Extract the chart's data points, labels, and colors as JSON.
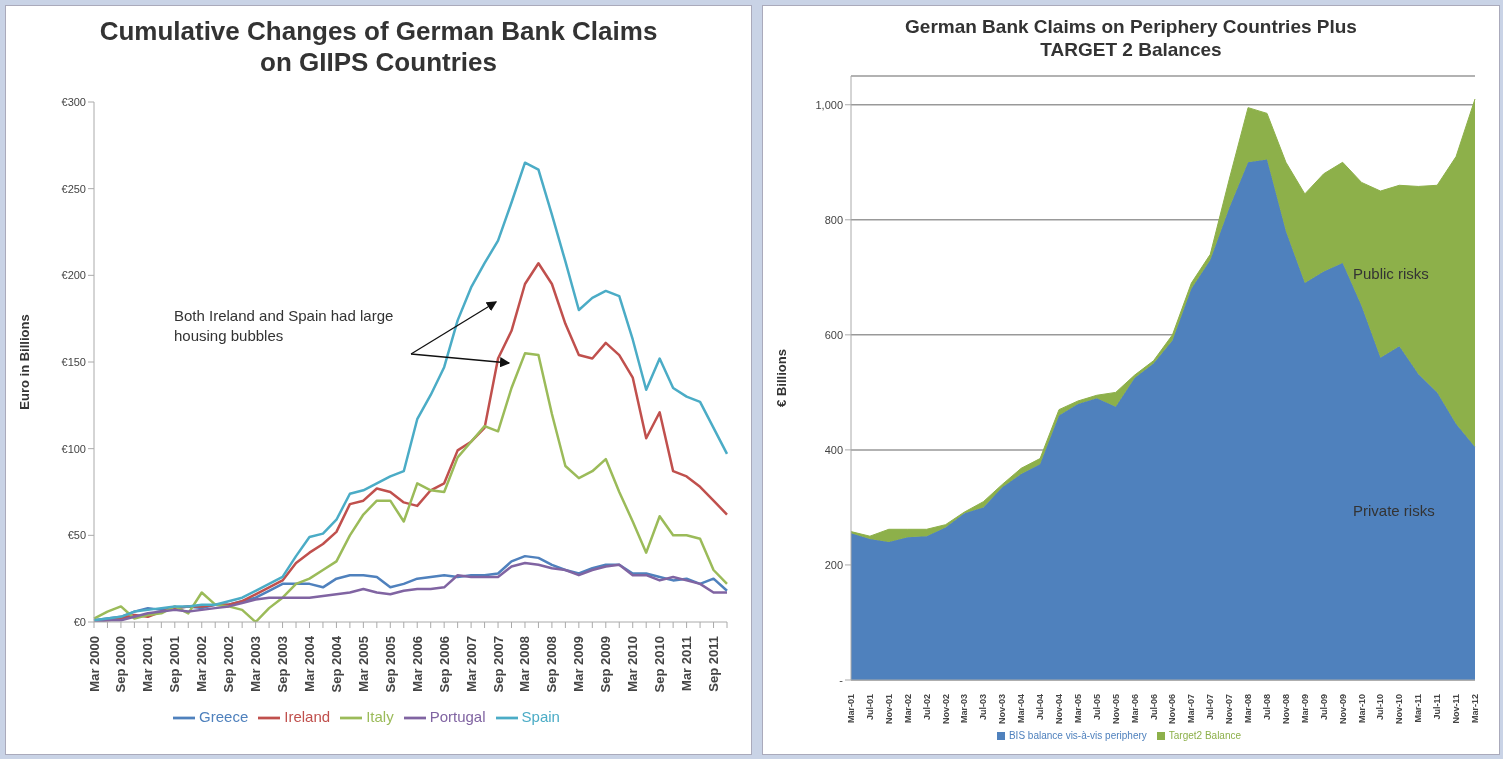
{
  "chart_data": [
    {
      "type": "line",
      "title": "Cumulative Changes of German Bank Claims on GIIPS Countries",
      "ylabel": "Euro in Billions",
      "categories": [
        "Mar 2000",
        null,
        "Sep 2000",
        null,
        "Mar 2001",
        null,
        "Sep 2001",
        null,
        "Mar 2002",
        null,
        "Sep 2002",
        null,
        "Mar 2003",
        null,
        "Sep 2003",
        null,
        "Mar 2004",
        null,
        "Sep 2004",
        null,
        "Mar 2005",
        null,
        "Sep 2005",
        null,
        "Mar 2006",
        null,
        "Sep 2006",
        null,
        "Mar 2007",
        null,
        "Sep 2007",
        null,
        "Mar 2008",
        null,
        "Sep 2008",
        null,
        "Mar 2009",
        null,
        "Sep 2009",
        null,
        "Mar 2010",
        null,
        "Sep 2010",
        null,
        "Mar 2011",
        null,
        "Sep 2011",
        null
      ],
      "ylim": [
        0,
        300
      ],
      "yticks": [
        {
          "value": 0,
          "label": "€0"
        },
        {
          "value": 50,
          "label": "€50"
        },
        {
          "value": 100,
          "label": "€100"
        },
        {
          "value": 150,
          "label": "€150"
        },
        {
          "value": 200,
          "label": "€200"
        },
        {
          "value": 250,
          "label": "€250"
        },
        {
          "value": 300,
          "label": "€300"
        }
      ],
      "legend": "bottom",
      "annotations": [
        "Both Ireland and Spain had large housing bubbles"
      ],
      "series": [
        {
          "name": "Greece",
          "color": "#4f81bd",
          "values": [
            1,
            2,
            3,
            6,
            8,
            7,
            8,
            9,
            8,
            10,
            10,
            12,
            14,
            18,
            22,
            22,
            22,
            20,
            25,
            27,
            27,
            26,
            20,
            22,
            25,
            26,
            27,
            26,
            27,
            27,
            28,
            35,
            38,
            37,
            33,
            30,
            28,
            31,
            33,
            33,
            28,
            28,
            26,
            24,
            25,
            22,
            25,
            18
          ]
        },
        {
          "name": "Ireland",
          "color": "#c0504d",
          "values": [
            1,
            1,
            2,
            4,
            3,
            6,
            8,
            9,
            9,
            10,
            10,
            12,
            16,
            20,
            24,
            34,
            40,
            45,
            52,
            68,
            70,
            77,
            75,
            69,
            67,
            76,
            80,
            99,
            104,
            112,
            152,
            168,
            195,
            207,
            195,
            172,
            154,
            152,
            161,
            154,
            141,
            106,
            121,
            87,
            84,
            78,
            70,
            62
          ]
        },
        {
          "name": "Italy",
          "color": "#9bbb59",
          "values": [
            2,
            6,
            9,
            2,
            4,
            5,
            9,
            5,
            17,
            10,
            9,
            7,
            0,
            8,
            14,
            22,
            25,
            30,
            35,
            50,
            62,
            70,
            70,
            58,
            80,
            76,
            75,
            95,
            104,
            113,
            110,
            135,
            155,
            154,
            120,
            90,
            83,
            87,
            94,
            75,
            58,
            40,
            61,
            50,
            50,
            48,
            30,
            22
          ]
        },
        {
          "name": "Portugal",
          "color": "#8064a2",
          "values": [
            0,
            1,
            1,
            3,
            5,
            6,
            7,
            6,
            7,
            8,
            9,
            11,
            13,
            14,
            14,
            14,
            14,
            15,
            16,
            17,
            19,
            17,
            16,
            18,
            19,
            19,
            20,
            27,
            26,
            26,
            26,
            32,
            34,
            33,
            31,
            30,
            27,
            30,
            32,
            33,
            27,
            27,
            24,
            26,
            24,
            22,
            17,
            17
          ]
        },
        {
          "name": "Spain",
          "color": "#4bacc6",
          "values": [
            1,
            2,
            3,
            6,
            7,
            8,
            9,
            9,
            10,
            10,
            12,
            14,
            18,
            22,
            26,
            38,
            49,
            51,
            59,
            74,
            76,
            80,
            84,
            87,
            117,
            131,
            147,
            174,
            193,
            207,
            220,
            242,
            265,
            261,
            235,
            208,
            180,
            187,
            191,
            188,
            163,
            134,
            152,
            135,
            130,
            127,
            112,
            97
          ]
        }
      ]
    },
    {
      "type": "area",
      "stacked": true,
      "title": "German Bank Claims on Periphery Countries Plus TARGET 2 Balances",
      "ylabel": "€ Billions",
      "categories": [
        "Mar-01",
        "Jul-01",
        "Nov-01",
        "Mar-02",
        "Jul-02",
        "Nov-02",
        "Mar-03",
        "Jul-03",
        "Nov-03",
        "Mar-04",
        "Jul-04",
        "Nov-04",
        "Mar-05",
        "Jul-05",
        "Nov-05",
        "Mar-06",
        "Jul-06",
        "Nov-06",
        "Mar-07",
        "Jul-07",
        "Nov-07",
        "Mar-08",
        "Jul-08",
        "Nov-08",
        "Mar-09",
        "Jul-09",
        "Nov-09",
        "Mar-10",
        "Jul-10",
        "Nov-10",
        "Mar-11",
        "Jul-11",
        "Nov-11",
        "Mar-12"
      ],
      "ylim": [
        0,
        1050
      ],
      "yticks": [
        {
          "value": 0,
          "label": "-"
        },
        200,
        400,
        600,
        800,
        {
          "value": 1000,
          "label": "1,000"
        }
      ],
      "grid": "y",
      "legend": "bottom",
      "annotations": [
        "Public risks",
        "Private risks"
      ],
      "series": [
        {
          "name": "BIS balance vis-à-vis periphery",
          "color": "#4f81bd",
          "values": [
            255,
            245,
            240,
            248,
            250,
            265,
            290,
            300,
            335,
            358,
            375,
            460,
            480,
            490,
            475,
            525,
            550,
            590,
            680,
            730,
            820,
            900,
            905,
            780,
            690,
            710,
            725,
            650,
            560,
            580,
            532,
            500,
            445,
            405
          ]
        },
        {
          "name": "Target2 Balance",
          "color": "#8db04a",
          "values": [
            3,
            5,
            22,
            14,
            12,
            5,
            2,
            10,
            5,
            10,
            10,
            10,
            5,
            5,
            25,
            5,
            5,
            10,
            10,
            10,
            50,
            95,
            80,
            120,
            155,
            170,
            175,
            215,
            290,
            280,
            326,
            360,
            465,
            605
          ]
        }
      ]
    }
  ]
}
